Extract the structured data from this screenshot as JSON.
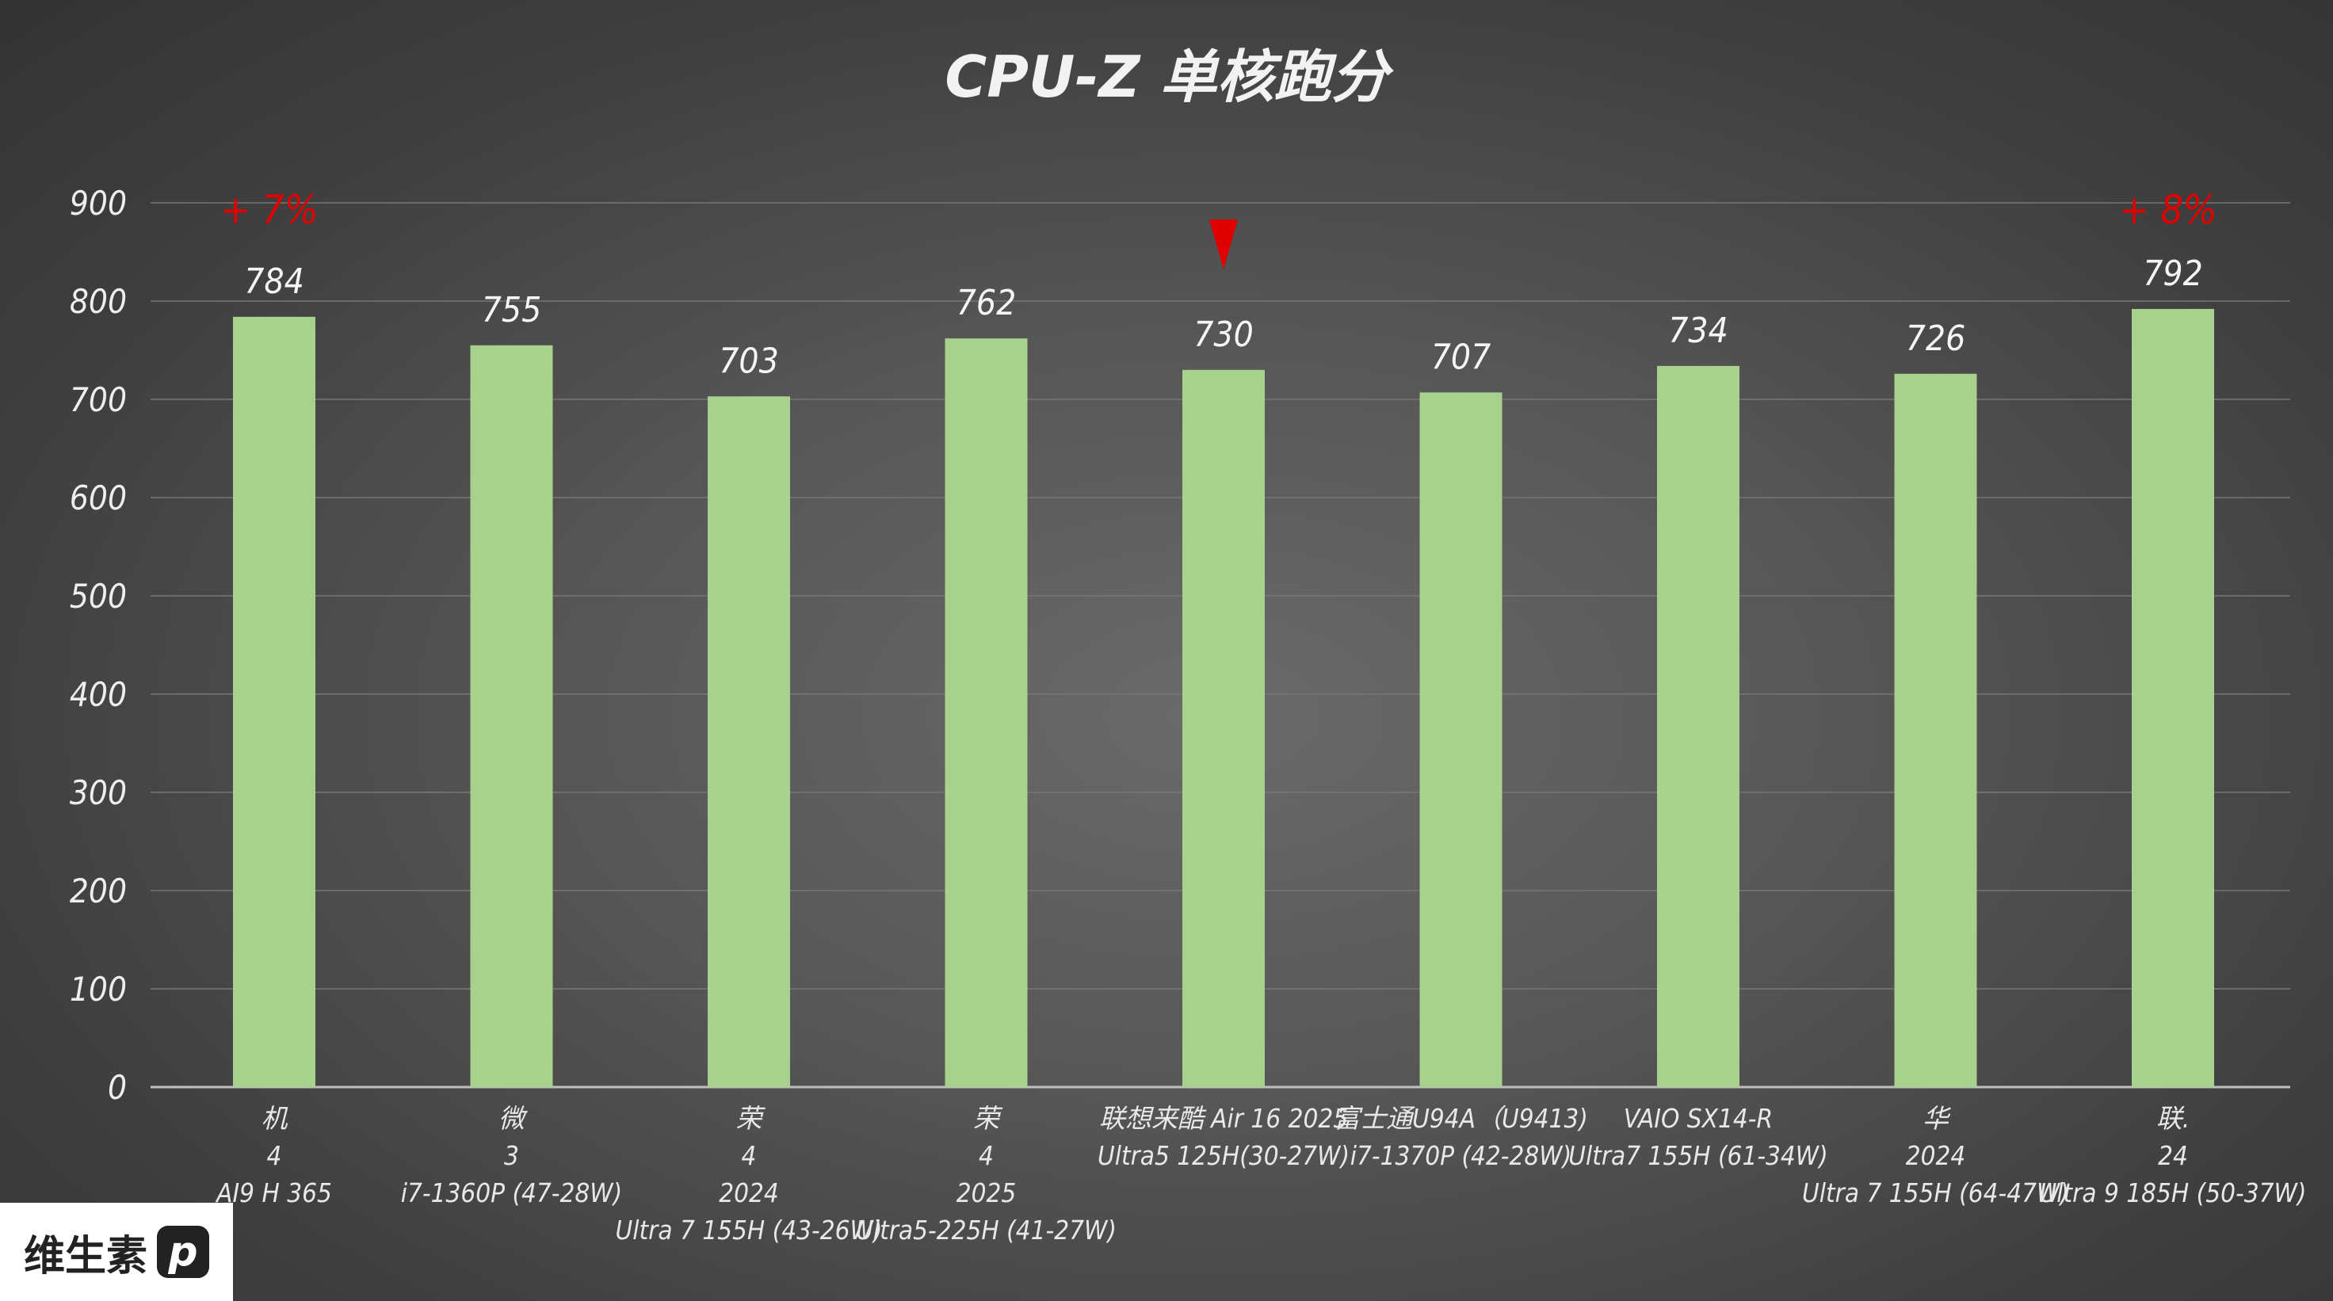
{
  "chart_data": {
    "type": "bar",
    "title": "CPU-Z 单核跑分",
    "ylim": [
      0,
      900
    ],
    "yticks": [
      0,
      100,
      200,
      300,
      400,
      500,
      600,
      700,
      800,
      900
    ],
    "grid": true,
    "categories": [
      [
        "机",
        "4",
        "AI9 H 365"
      ],
      [
        "微",
        "3",
        "i7-1360P (47-28W)"
      ],
      [
        "荣",
        "4",
        "2024",
        "Ultra 7 155H (43-26W)"
      ],
      [
        "荣",
        "4",
        "2025",
        "Ultra5-225H (41-27W)"
      ],
      [
        "联想来酷 Air 16 2025",
        "Ultra5 125H(30-27W)"
      ],
      [
        "富士通U94A（U9413)",
        "i7-1370P (42-28W)"
      ],
      [
        "VAIO SX14-R",
        "Ultra7 155H (61-34W)"
      ],
      [
        "华",
        "2024",
        "Ultra 7 155H (64-47W)"
      ],
      [
        "联.",
        "24",
        "Ultra 9 185H (50-37W)"
      ]
    ],
    "values": [
      784,
      755,
      703,
      762,
      730,
      707,
      734,
      726,
      792
    ],
    "bar_color": "#a9d18e",
    "highlight_index": 4,
    "annotations": [
      {
        "index": 0,
        "text": "+ 7%",
        "color": "#e00000"
      },
      {
        "index": 8,
        "text": "+ 8%",
        "color": "#e00000"
      }
    ]
  },
  "logo": {
    "text": "维生素",
    "mark": "p"
  }
}
